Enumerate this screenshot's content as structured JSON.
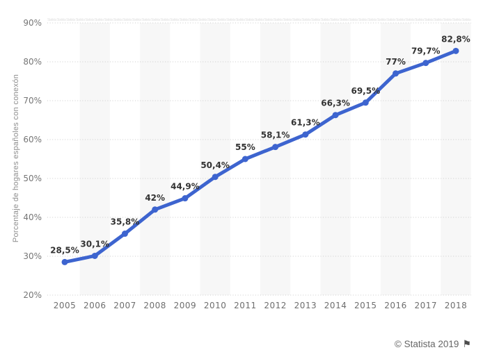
{
  "chart_data": {
    "type": "line",
    "title": "",
    "x": [
      "2005",
      "2006",
      "2007",
      "2008",
      "2009",
      "2010",
      "2011",
      "2012",
      "2013",
      "2014",
      "2015",
      "2016",
      "2017",
      "2018"
    ],
    "values": [
      28.5,
      30.1,
      35.8,
      42,
      44.9,
      50.4,
      55,
      58.1,
      61.3,
      66.3,
      69.5,
      77,
      79.7,
      82.8
    ],
    "point_labels": [
      "28,5%",
      "30,1%",
      "35,8%",
      "42%",
      "44,9%",
      "50,4%",
      "55%",
      "58,1%",
      "61,3%",
      "66,3%",
      "69,5%",
      "77%",
      "79,7%",
      "82,8%"
    ],
    "xlabel": "",
    "ylabel": "Porcentaje de hogares españoles con conexón",
    "ylim": [
      20,
      90
    ],
    "yticks": [
      20,
      30,
      40,
      50,
      60,
      70,
      80,
      90
    ],
    "ytick_labels": [
      "20%",
      "30%",
      "40%",
      "50%",
      "60%",
      "70%",
      "80%",
      "90%"
    ],
    "grid": "dotted-horizontal",
    "legend": "none",
    "line_color": "#3d64cf",
    "band_color": "#f7f7f7",
    "grid_color": "#cbcbcb",
    "tick_color": "#757575",
    "data_label_color": "#333333",
    "watermark": "Statista"
  },
  "footer": {
    "text": "© Statista 2019",
    "flag_icon": "⚑"
  }
}
